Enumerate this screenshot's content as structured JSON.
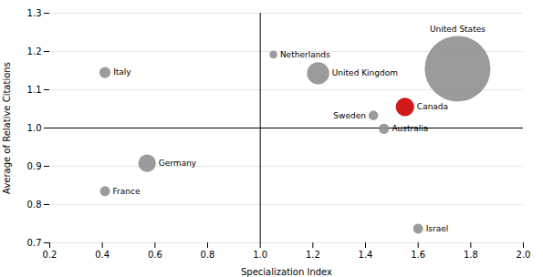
{
  "chart_data": {
    "type": "scatter",
    "xlabel": "Specialization Index",
    "ylabel": "Average of Relative Citations",
    "names": [
      "Italy",
      "France",
      "Germany",
      "Netherlands",
      "United Kingdom",
      "Sweden",
      "Australia",
      "Canada",
      "United States",
      "Israel"
    ],
    "x": [
      0.41,
      0.41,
      0.57,
      1.05,
      1.22,
      1.43,
      1.47,
      1.55,
      1.75,
      1.6
    ],
    "y": [
      1.145,
      0.835,
      0.908,
      1.192,
      1.143,
      1.033,
      0.998,
      1.055,
      1.155,
      0.737
    ],
    "sizes": [
      80,
      65,
      200,
      40,
      320,
      60,
      70,
      220,
      2800,
      65
    ],
    "colors": [
      "#909090",
      "#909090",
      "#909090",
      "#909090",
      "#909090",
      "#909090",
      "#909090",
      "#cc0000",
      "#909090",
      "#909090"
    ],
    "xlim": [
      0.2,
      2.0
    ],
    "ylim": [
      0.7,
      1.3
    ],
    "xticks": [
      0.2,
      0.4,
      0.6,
      0.8,
      {
        "value": 1.0,
        "label": "1.0"
      },
      1.2,
      1.4,
      1.6,
      1.8,
      {
        "value": 2.0,
        "label": "2.0"
      }
    ],
    "yticks": [
      0.7,
      0.8,
      0.9,
      {
        "value": 1.0,
        "label": "1.0"
      },
      1.1,
      1.2,
      1.3
    ],
    "vline": 1.0,
    "hline": 1.0,
    "grid": "y"
  }
}
